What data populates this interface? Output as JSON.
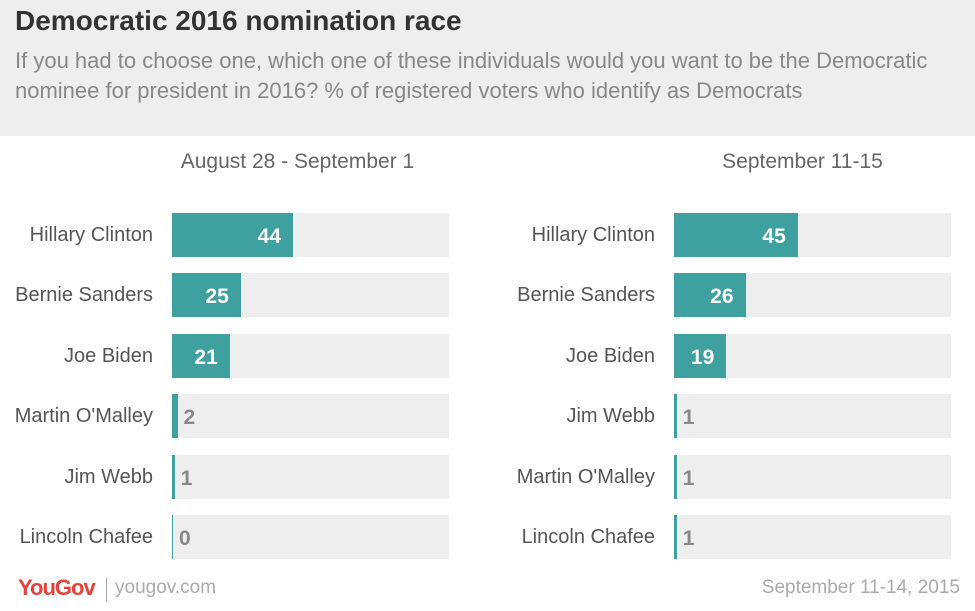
{
  "title": "Democratic 2016 nomination race",
  "subtitle": "If you had to choose one, which one of these individuals would you want to be the Democratic nominee for president in 2016? % of registered voters who identify as Democrats",
  "colors": {
    "bar": "#3ea09f",
    "track": "#eeeeee",
    "value_inside": "#ffffff",
    "value_outside": "#888888"
  },
  "chart_data": [
    {
      "type": "bar",
      "orientation": "horizontal",
      "title": "August 28 - September 1",
      "categories": [
        "Hillary Clinton",
        "Bernie Sanders",
        "Joe Biden",
        "Martin O'Malley",
        "Jim Webb",
        "Lincoln Chafee"
      ],
      "values": [
        44,
        25,
        21,
        2,
        1,
        0
      ],
      "xlim": [
        0,
        100
      ],
      "grid": false
    },
    {
      "type": "bar",
      "orientation": "horizontal",
      "title": "September 11-15",
      "categories": [
        "Hillary Clinton",
        "Bernie Sanders",
        "Joe Biden",
        "Jim Webb",
        "Martin O'Malley",
        "Lincoln Chafee"
      ],
      "values": [
        45,
        26,
        19,
        1,
        1,
        1
      ],
      "xlim": [
        0,
        100
      ],
      "grid": false
    }
  ],
  "footer": {
    "logo": "YouGov",
    "site": "yougov.com",
    "date": "September 11-14, 2015"
  }
}
